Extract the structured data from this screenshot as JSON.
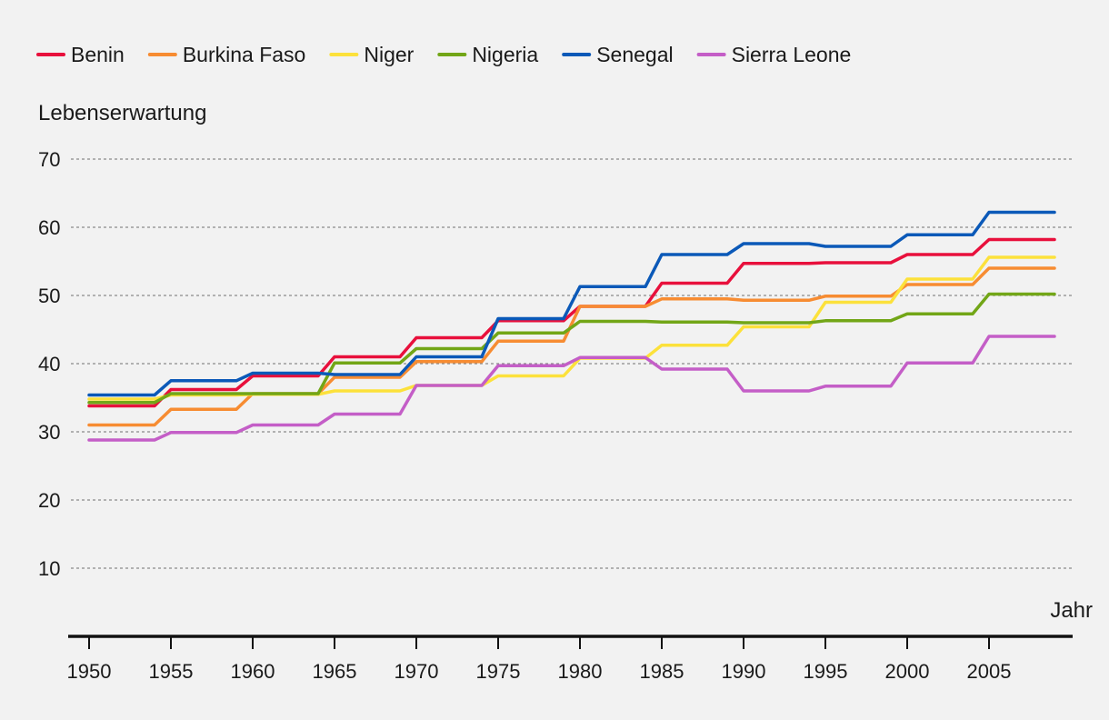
{
  "chart_data": {
    "type": "line",
    "title": "",
    "ylabel": "Lebenserwartung",
    "xlabel": "Jahr",
    "x": [
      1950,
      1955,
      1960,
      1965,
      1970,
      1975,
      1980,
      1985,
      1990,
      1995,
      2000,
      2005
    ],
    "xlim": [
      1950,
      2009
    ],
    "ylim": [
      0,
      70
    ],
    "yticks": [
      10,
      20,
      30,
      40,
      50,
      60,
      70
    ],
    "xticks": [
      1950,
      1955,
      1960,
      1965,
      1970,
      1975,
      1980,
      1985,
      1990,
      1995,
      2000,
      2005
    ],
    "grid": "horizontal dashed",
    "legend_position": "top",
    "series": [
      {
        "name": "Benin",
        "color": "#e8103c",
        "values": [
          33.8,
          36.2,
          38.2,
          41.0,
          43.8,
          46.3,
          48.4,
          51.8,
          54.7,
          54.8,
          56.0,
          58.2
        ]
      },
      {
        "name": "Burkina Faso",
        "color": "#f78c32",
        "values": [
          31.0,
          33.3,
          35.6,
          38.0,
          40.3,
          43.3,
          48.4,
          49.5,
          49.3,
          49.9,
          51.6,
          54.0
        ]
      },
      {
        "name": "Niger",
        "color": "#fce13b",
        "values": [
          34.8,
          35.4,
          35.5,
          36.0,
          36.8,
          38.2,
          40.8,
          42.7,
          45.4,
          49.0,
          52.4,
          55.6
        ]
      },
      {
        "name": "Nigeria",
        "color": "#72a617",
        "values": [
          34.3,
          35.6,
          35.6,
          40.1,
          42.2,
          44.5,
          46.2,
          46.1,
          46.0,
          46.3,
          47.3,
          50.2
        ]
      },
      {
        "name": "Senegal",
        "color": "#0b59b8",
        "values": [
          35.4,
          37.5,
          38.6,
          38.4,
          41.0,
          46.6,
          51.3,
          56.0,
          57.6,
          57.2,
          58.9,
          62.2
        ]
      },
      {
        "name": "Sierra Leone",
        "color": "#c45ec7",
        "values": [
          28.8,
          29.9,
          31.0,
          32.6,
          36.8,
          39.7,
          40.9,
          39.2,
          36.0,
          36.7,
          40.1,
          44.0
        ]
      }
    ]
  }
}
